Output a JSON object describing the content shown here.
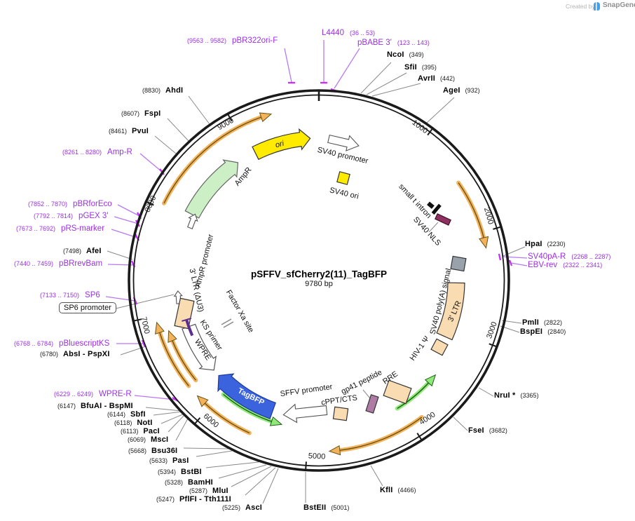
{
  "watermark": {
    "created_by": "Created by",
    "brand": "SnapGene"
  },
  "title": {
    "name": "pSFFV_sfCherry2(11)_TagBFP",
    "size": "9780 bp"
  },
  "ticks": [
    "1000",
    "2000",
    "3000",
    "4000",
    "5000",
    "6000",
    "7000",
    "8000",
    "9000"
  ],
  "enzymes": {
    "ncoi": {
      "name": "NcoI",
      "pos": "(349)"
    },
    "sfii": {
      "name": "SfiI",
      "pos": "(395)"
    },
    "avrii": {
      "name": "AvrII",
      "pos": "(442)"
    },
    "agei": {
      "name": "AgeI",
      "pos": "(932)"
    },
    "hpai": {
      "name": "HpaI",
      "pos": "(2230)"
    },
    "pmli": {
      "name": "PmlI",
      "pos": "(2822)"
    },
    "bspei": {
      "name": "BspEI",
      "pos": "(2840)"
    },
    "nrui": {
      "name": "NruI *",
      "pos": "(3365)"
    },
    "fsei": {
      "name": "FseI",
      "pos": "(3682)"
    },
    "kfli": {
      "name": "KflI",
      "pos": "(4466)"
    },
    "bsteii": {
      "name": "BstEII",
      "pos": "(5001)"
    },
    "asci": {
      "name": "AscI",
      "pos": "(5225)"
    },
    "pflfi": {
      "name": "PflFI - Tth111I",
      "pos": "(5247)"
    },
    "mlui": {
      "name": "MluI",
      "pos": "(5287)"
    },
    "bamhi": {
      "name": "BamHI",
      "pos": "(5328)"
    },
    "bstbi": {
      "name": "BstBI",
      "pos": "(5394)"
    },
    "pasi": {
      "name": "PasI",
      "pos": "(5633)"
    },
    "bsu36i": {
      "name": "Bsu36I",
      "pos": "(5668)"
    },
    "msci": {
      "name": "MscI",
      "pos": "(6069)"
    },
    "paci": {
      "name": "PacI",
      "pos": "(6113)"
    },
    "noti": {
      "name": "NotI",
      "pos": "(6118)"
    },
    "sbfi": {
      "name": "SbfI",
      "pos": "(6144)"
    },
    "bfuai": {
      "name": "BfuAI - BspMI",
      "pos": "(6147)"
    },
    "absi": {
      "name": "AbsI - PspXI",
      "pos": "(6780)"
    },
    "afei": {
      "name": "AfeI",
      "pos": "(7498)"
    },
    "pvui": {
      "name": "PvuI",
      "pos": "(8461)"
    },
    "fspi": {
      "name": "FspI",
      "pos": "(8607)"
    },
    "ahdi": {
      "name": "AhdI",
      "pos": "(8830)"
    }
  },
  "primers": {
    "pbr322ori_f": {
      "name": "pBR322ori-F",
      "range": "(9563 .. 9582)"
    },
    "l4440": {
      "name": "L4440",
      "range": "(36 .. 53)"
    },
    "pbabe3": {
      "name": "pBABE 3'",
      "range": "(123 .. 143)"
    },
    "sv40pa_r": {
      "name": "SV40pA-R",
      "range": "(2268 .. 2287)"
    },
    "ebv_rev": {
      "name": "EBV-rev",
      "range": "(2322 .. 2341)"
    },
    "wpre_r": {
      "name": "WPRE-R",
      "range": "(6229 .. 6249)"
    },
    "pbluescriptks": {
      "name": "pBluescriptKS",
      "range": "(6768 .. 6784)"
    },
    "sp6": {
      "name": "SP6",
      "range": "(7133 .. 7150)"
    },
    "pbrrevbam": {
      "name": "pBRrevBam",
      "range": "(7440 .. 7459)"
    },
    "prs_marker": {
      "name": "pRS-marker",
      "range": "(7673 .. 7692)"
    },
    "pgex3": {
      "name": "pGEX 3'",
      "range": "(7792 .. 7814)"
    },
    "pbrforeco": {
      "name": "pBRforEco",
      "range": "(7852 .. 7870)"
    },
    "amp_r": {
      "name": "Amp-R",
      "range": "(8261 .. 8280)"
    }
  },
  "features": {
    "ori": "ori",
    "sv40_promoter": "SV40 promoter",
    "sv40_ori": "SV40 ori",
    "ampr": "AmpR",
    "ampr_promoter": "AmpR promoter",
    "small_t_intron": "small t intron",
    "sv40_nls": "SV40 NLS",
    "sv40_polya": "SV40 poly(A) signal",
    "ltr3": "3' LTR",
    "hiv1_psi": "HIV-1 Ψ",
    "rre": "RRE",
    "gp41": "gp41 peptide",
    "cppt": "cPPT/CTS",
    "sffv_promoter": "SFFV promoter",
    "tagbfp": "TagBFP",
    "wpre": "WPRE",
    "ks_primer": "KS primer",
    "ltr3_du3": "3' LTR (ΔU3)",
    "factor_xa": "Factor Xa site",
    "sp6_promoter": "SP6 promoter"
  },
  "colors": {
    "ring": "#1A1A1A",
    "pointer_gray": "#8A8A8A",
    "primer_line": "#B878F2",
    "primer_tick": "#C433FA",
    "ks_primer_bar": "#5C2D91",
    "orf_orange": "#F2B35C",
    "orf_orange_core": "#6B5212",
    "orf_green": "#8FE878",
    "orf_green_core": "#1C5E14",
    "ori_yellow": "#FFEB00",
    "ampr_green": "#CDEFC5",
    "tagbfp_blue": "#3A63DD",
    "tagbfp_edge": "#1B3A9E",
    "feature_peach": "#FADCB2",
    "polya_gray": "#99A2AB",
    "nls_maroon": "#8E3060",
    "gp41_mauve": "#AF7CA5",
    "white": "#FFFFFF",
    "outline": "#444444"
  }
}
